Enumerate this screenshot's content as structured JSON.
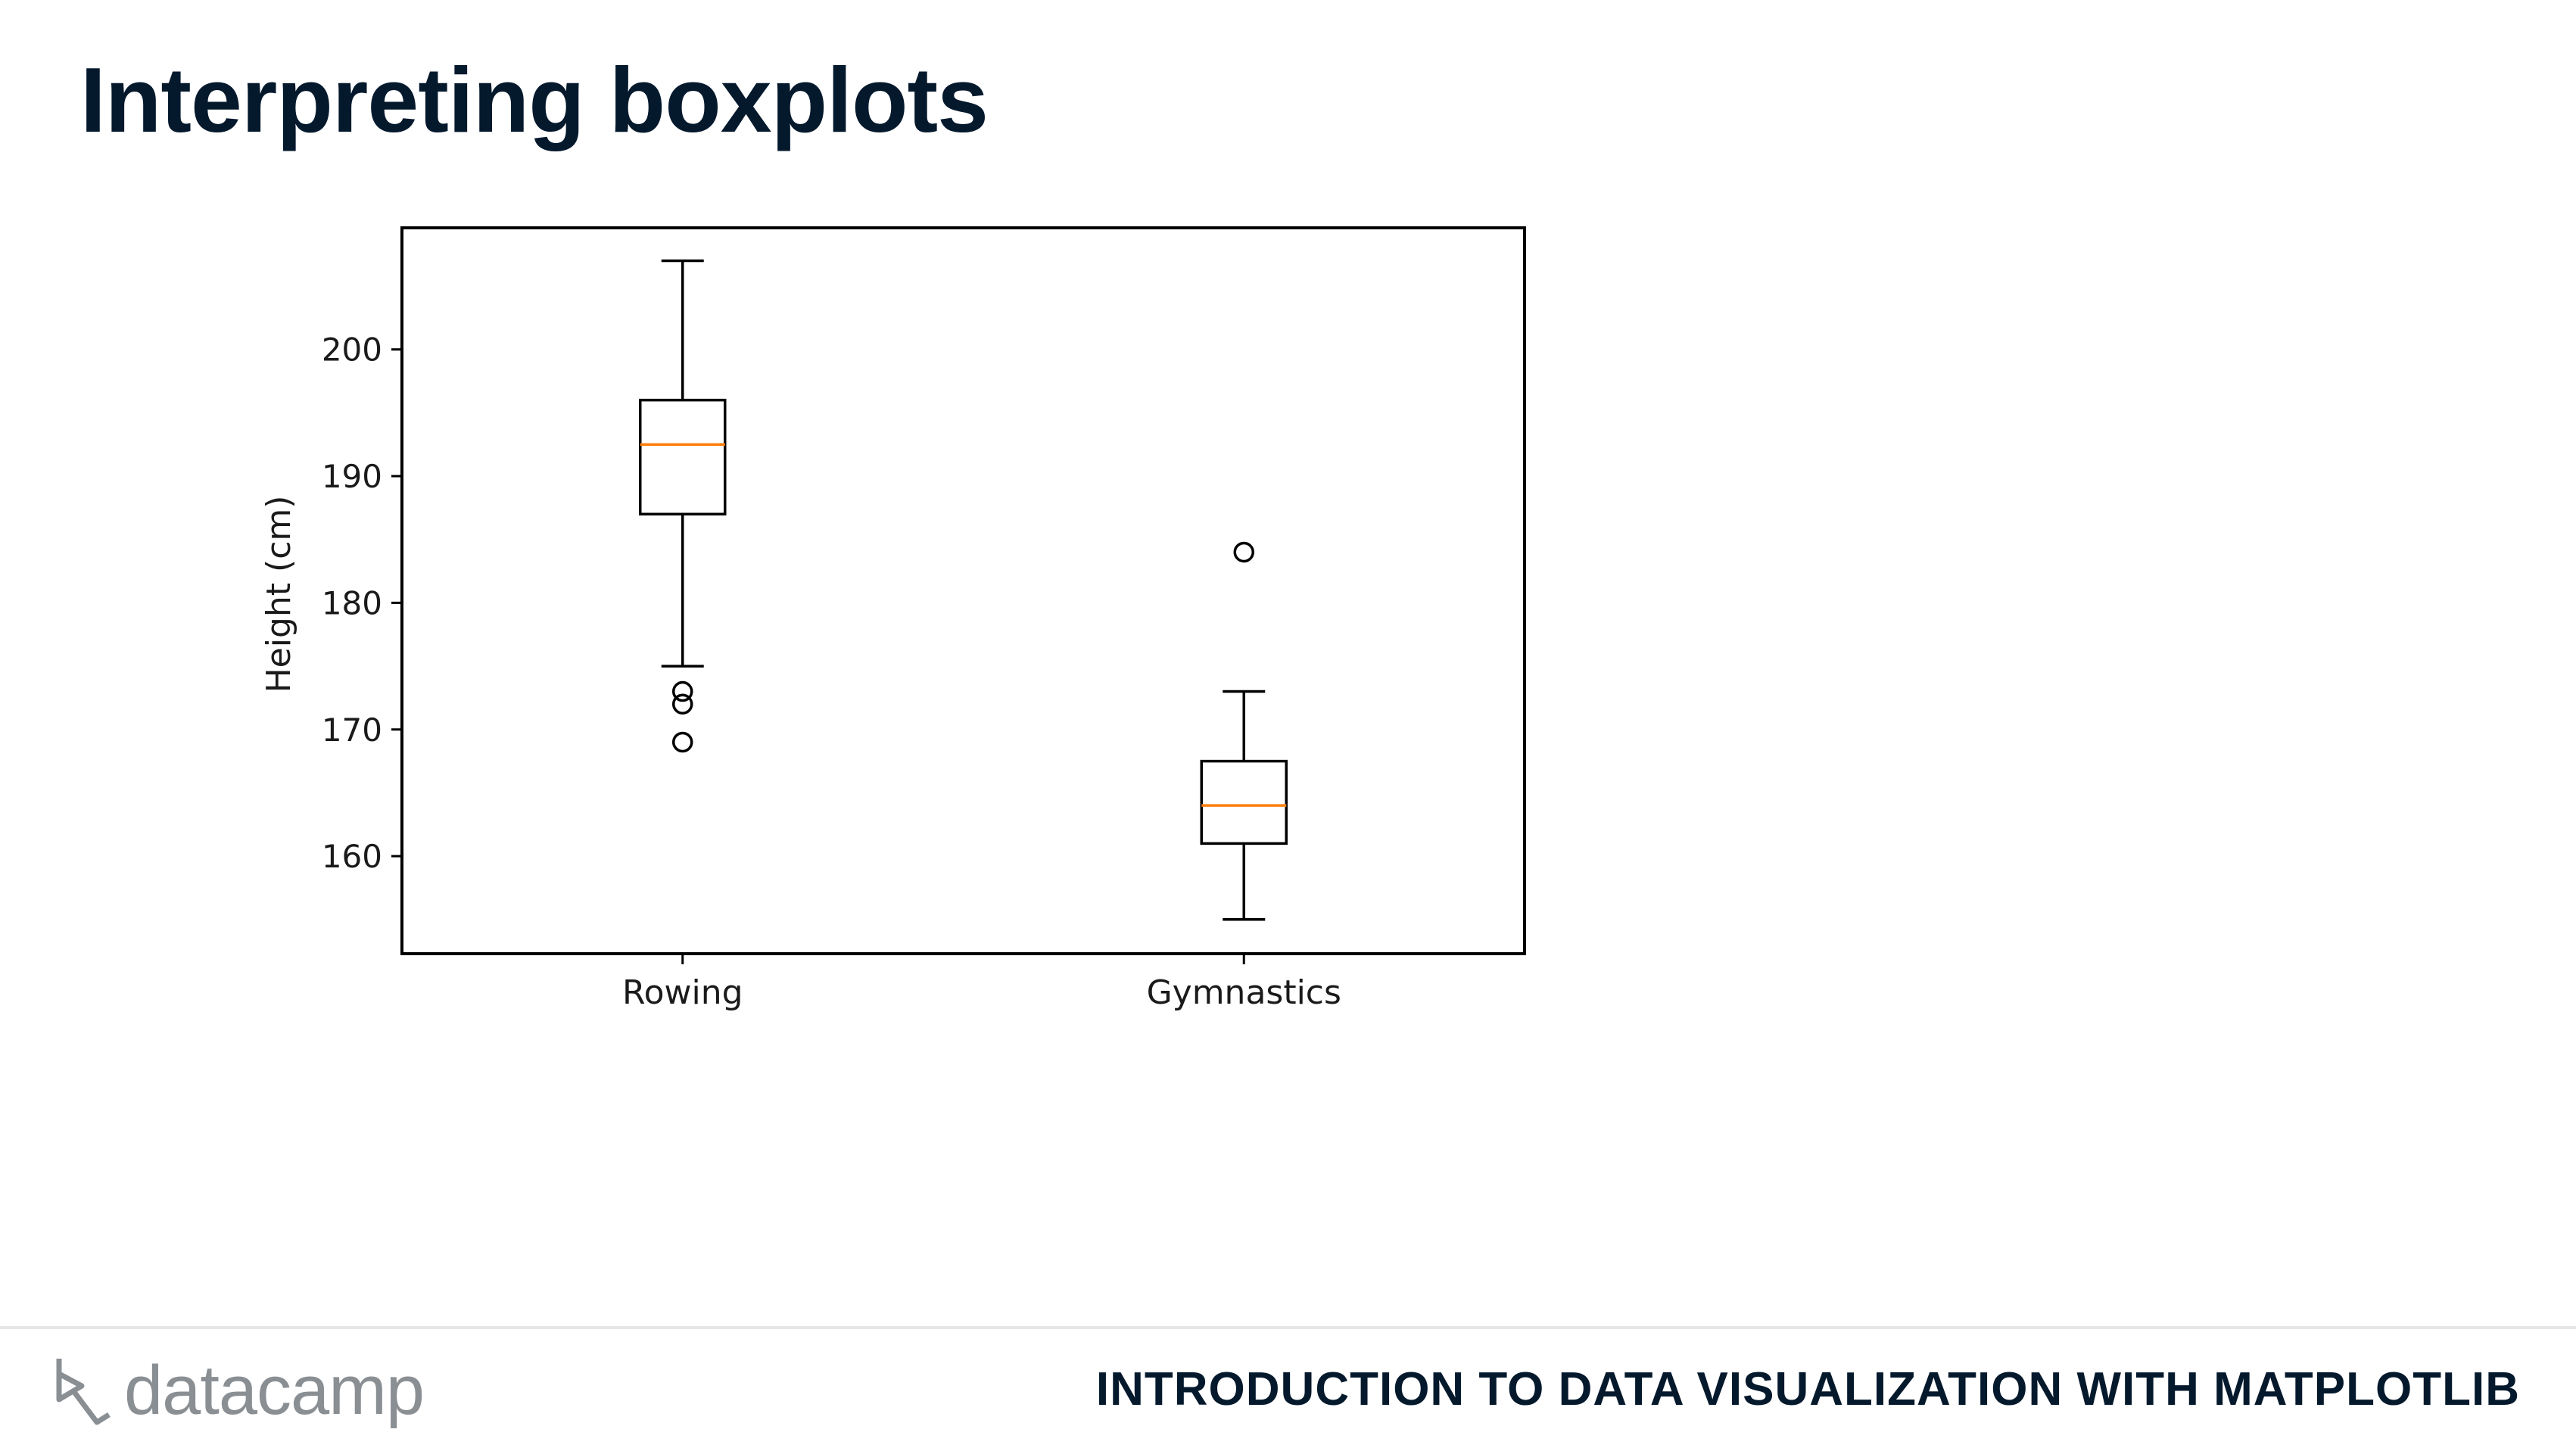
{
  "slide": {
    "title": "Interpreting boxplots"
  },
  "footer": {
    "logo_text": "datacamp",
    "logo_icon": "datacamp-logo-icon",
    "course_title": "INTRODUCTION TO DATA VISUALIZATION WITH MATPLOTLIB"
  },
  "chart_data": {
    "type": "boxplot",
    "title": "",
    "xlabel": "",
    "ylabel": "Height (cm)",
    "ylim": [
      152.3,
      209.6
    ],
    "yticks": [
      160,
      170,
      180,
      190,
      200
    ],
    "grid": false,
    "categories": [
      "Rowing",
      "Gymnastics"
    ],
    "boxes": [
      {
        "category": "Rowing",
        "whisker_low": 175,
        "q1": 187,
        "median": 192.5,
        "q3": 196,
        "whisker_high": 207,
        "outliers": [
          173,
          172,
          169
        ]
      },
      {
        "category": "Gymnastics",
        "whisker_low": 155,
        "q1": 161,
        "median": 164,
        "q3": 167.5,
        "whisker_high": 173,
        "outliers": [
          184
        ]
      }
    ],
    "colors": {
      "box": "#000000",
      "median": "#ff7f0e",
      "axes": "#000000"
    }
  }
}
